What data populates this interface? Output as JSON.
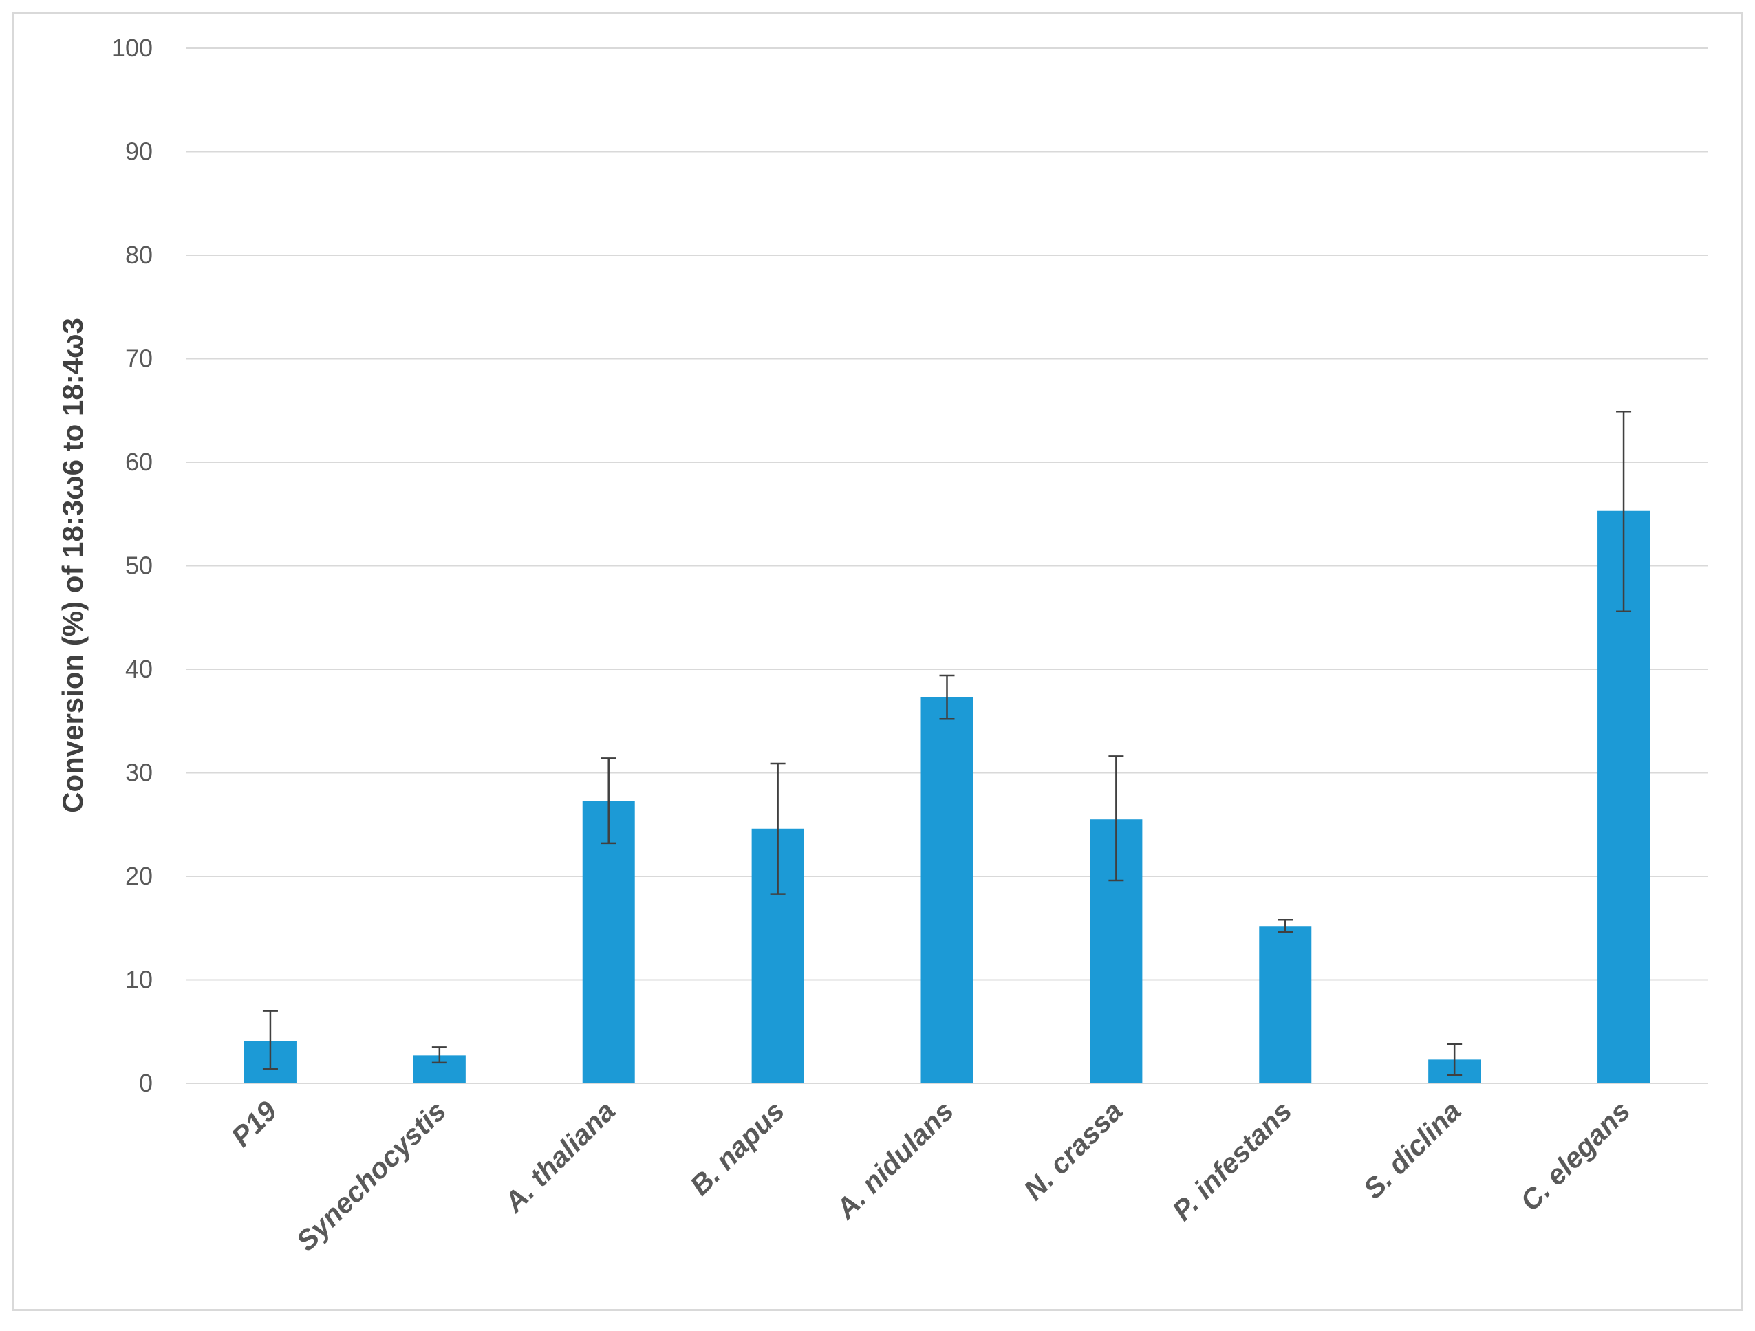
{
  "chart_data": {
    "type": "bar",
    "title": "",
    "xlabel": "",
    "ylabel": "Conversion (%) of 18:3ω6 to 18:4ω3",
    "ylim": [
      0,
      100
    ],
    "yticks": [
      0,
      10,
      20,
      30,
      40,
      50,
      60,
      70,
      80,
      90,
      100
    ],
    "grid": true,
    "legend": "none",
    "categories": [
      "P19",
      "Synechocystis",
      "A. thaliana",
      "B. napus",
      "A. nidulans",
      "N. crassa",
      "P.  infestans",
      "S. diclina",
      "C. elegans"
    ],
    "values": [
      4.1,
      2.7,
      27.3,
      24.6,
      37.3,
      25.5,
      15.2,
      2.3,
      55.3
    ],
    "error_low": [
      1.4,
      2.0,
      23.2,
      18.3,
      35.2,
      19.6,
      14.6,
      0.8,
      45.6
    ],
    "error_high": [
      7.0,
      3.5,
      31.4,
      30.9,
      39.4,
      31.6,
      15.8,
      3.8,
      64.9
    ],
    "bar_color": "#1c9ad6",
    "grid_color": "#d9d9d9",
    "error_color": "#404040"
  }
}
